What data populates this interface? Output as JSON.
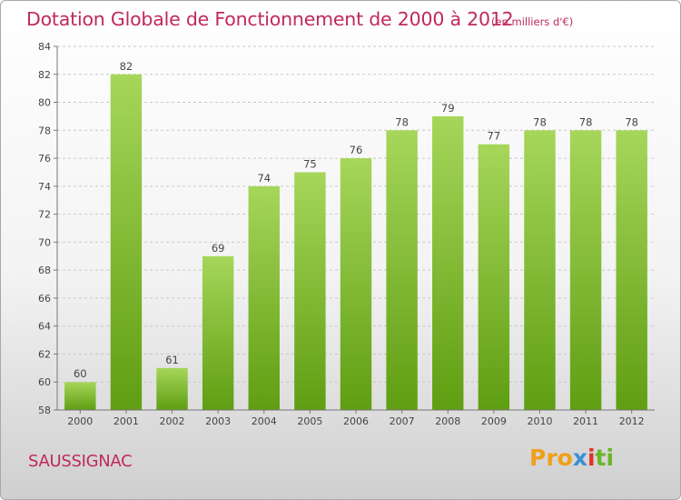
{
  "chart_data": {
    "type": "bar",
    "title": "Dotation Globale de Fonctionnement de 2000 à 2012",
    "subtitle": "(en milliers d'€)",
    "categories": [
      "2000",
      "2001",
      "2002",
      "2003",
      "2004",
      "2005",
      "2006",
      "2007",
      "2008",
      "2009",
      "2010",
      "2011",
      "2012"
    ],
    "values": [
      60,
      82,
      61,
      69,
      74,
      75,
      76,
      78,
      79,
      77,
      78,
      78,
      78
    ],
    "ylim": [
      58,
      84
    ],
    "yticks": [
      58,
      60,
      62,
      64,
      66,
      68,
      70,
      72,
      74,
      76,
      78,
      80,
      82,
      84
    ],
    "grid": "horizontal-dashed",
    "bar_color_light": "#a6d65a",
    "bar_color_dark": "#5f9e12"
  },
  "footer": {
    "commune": "SAUSSIGNAC",
    "logo": {
      "part1": "Pro",
      "part2": "x",
      "part3": "i",
      "part4": "ti"
    }
  },
  "colors": {
    "accent": "#c0285f"
  }
}
